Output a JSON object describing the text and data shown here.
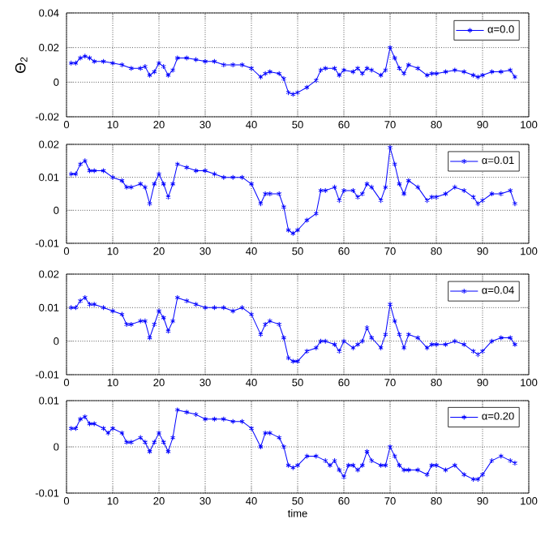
{
  "chart_data": [
    {
      "type": "line",
      "ylabel": "Θ$_{2}$",
      "xlim": [
        0,
        100
      ],
      "xticks": [
        0,
        10,
        20,
        30,
        40,
        50,
        60,
        70,
        80,
        90,
        100
      ],
      "ylim": [
        -0.02,
        0.04
      ],
      "yticks": [
        -0.02,
        0,
        0.02,
        0.04
      ],
      "grid": true,
      "legend": "top right",
      "marker": "cross",
      "line_style": "solid",
      "series": [
        {
          "name": "α=0.0",
          "color": "#0000ff",
          "x": [
            1,
            2,
            3,
            4,
            5,
            6,
            8,
            10,
            12,
            14,
            16,
            17,
            18,
            19,
            20,
            21,
            22,
            23,
            24,
            26,
            28,
            30,
            32,
            34,
            36,
            38,
            40,
            42,
            43,
            44,
            46,
            47,
            48,
            49,
            50,
            52,
            54,
            55,
            56,
            58,
            59,
            60,
            62,
            63,
            64,
            65,
            66,
            68,
            69,
            70,
            71,
            72,
            73,
            74,
            76,
            78,
            79,
            80,
            82,
            84,
            86,
            88,
            89,
            90,
            92,
            94,
            96,
            97
          ],
          "values": [
            0.011,
            0.011,
            0.014,
            0.015,
            0.014,
            0.012,
            0.012,
            0.011,
            0.01,
            0.008,
            0.008,
            0.009,
            0.004,
            0.006,
            0.011,
            0.009,
            0.004,
            0.007,
            0.014,
            0.014,
            0.013,
            0.012,
            0.012,
            0.01,
            0.01,
            0.01,
            0.008,
            0.003,
            0.005,
            0.006,
            0.005,
            0.002,
            -0.006,
            -0.007,
            -0.006,
            -0.003,
            0.001,
            0.007,
            0.008,
            0.008,
            0.004,
            0.007,
            0.006,
            0.008,
            0.005,
            0.008,
            0.007,
            0.004,
            0.007,
            0.02,
            0.014,
            0.008,
            0.005,
            0.01,
            0.008,
            0.004,
            0.005,
            0.005,
            0.006,
            0.007,
            0.006,
            0.004,
            0.003,
            0.004,
            0.006,
            0.006,
            0.007,
            0.003
          ]
        }
      ]
    },
    {
      "type": "line",
      "xlim": [
        0,
        100
      ],
      "xticks": [
        0,
        10,
        20,
        30,
        40,
        50,
        60,
        70,
        80,
        90,
        100
      ],
      "ylim": [
        -0.01,
        0.02
      ],
      "yticks": [
        -0.01,
        0,
        0.01,
        0.02
      ],
      "grid": true,
      "legend": "top right",
      "marker": "cross",
      "line_style": "solid",
      "series": [
        {
          "name": "α=0.01",
          "color": "#0000ff",
          "x": [
            1,
            2,
            3,
            4,
            5,
            6,
            8,
            10,
            12,
            13,
            14,
            16,
            17,
            18,
            19,
            20,
            21,
            22,
            23,
            24,
            26,
            28,
            30,
            32,
            34,
            36,
            38,
            40,
            42,
            43,
            44,
            46,
            47,
            48,
            49,
            50,
            52,
            54,
            55,
            56,
            58,
            59,
            60,
            62,
            63,
            64,
            65,
            66,
            68,
            69,
            70,
            71,
            72,
            73,
            74,
            76,
            78,
            79,
            80,
            82,
            84,
            86,
            88,
            89,
            90,
            92,
            94,
            96,
            97
          ],
          "values": [
            0.011,
            0.011,
            0.014,
            0.015,
            0.012,
            0.012,
            0.012,
            0.01,
            0.009,
            0.007,
            0.007,
            0.008,
            0.007,
            0.002,
            0.008,
            0.011,
            0.008,
            0.004,
            0.008,
            0.014,
            0.013,
            0.012,
            0.012,
            0.011,
            0.01,
            0.01,
            0.01,
            0.008,
            0.002,
            0.005,
            0.005,
            0.005,
            0.001,
            -0.006,
            -0.007,
            -0.006,
            -0.003,
            -0.001,
            0.006,
            0.006,
            0.007,
            0.003,
            0.006,
            0.006,
            0.004,
            0.005,
            0.008,
            0.007,
            0.003,
            0.007,
            0.019,
            0.014,
            0.008,
            0.005,
            0.009,
            0.007,
            0.003,
            0.004,
            0.004,
            0.005,
            0.007,
            0.006,
            0.004,
            0.002,
            0.003,
            0.005,
            0.005,
            0.006,
            0.002
          ]
        }
      ]
    },
    {
      "type": "line",
      "xlim": [
        0,
        100
      ],
      "xticks": [
        0,
        10,
        20,
        30,
        40,
        50,
        60,
        70,
        80,
        90,
        100
      ],
      "ylim": [
        -0.01,
        0.02
      ],
      "yticks": [
        -0.01,
        0,
        0.01,
        0.02
      ],
      "grid": true,
      "legend": "top right",
      "marker": "cross",
      "line_style": "solid",
      "series": [
        {
          "name": "α=0.04",
          "color": "#0000ff",
          "x": [
            1,
            2,
            3,
            4,
            5,
            6,
            8,
            10,
            12,
            13,
            14,
            16,
            17,
            18,
            19,
            20,
            21,
            22,
            23,
            24,
            26,
            28,
            30,
            32,
            34,
            36,
            38,
            40,
            42,
            43,
            44,
            46,
            47,
            48,
            49,
            50,
            52,
            54,
            55,
            56,
            58,
            59,
            60,
            62,
            63,
            64,
            65,
            66,
            68,
            69,
            70,
            71,
            72,
            73,
            74,
            76,
            78,
            79,
            80,
            82,
            84,
            86,
            88,
            89,
            90,
            92,
            94,
            96,
            97
          ],
          "values": [
            0.01,
            0.01,
            0.012,
            0.013,
            0.011,
            0.011,
            0.01,
            0.009,
            0.008,
            0.005,
            0.005,
            0.006,
            0.006,
            0.001,
            0.005,
            0.009,
            0.007,
            0.003,
            0.006,
            0.013,
            0.012,
            0.011,
            0.01,
            0.01,
            0.01,
            0.009,
            0.01,
            0.008,
            0.002,
            0.005,
            0.006,
            0.005,
            0.001,
            -0.005,
            -0.006,
            -0.006,
            -0.003,
            -0.002,
            0.0,
            0.0,
            -0.001,
            -0.003,
            0.0,
            -0.002,
            -0.001,
            0.0,
            0.004,
            0.001,
            -0.002,
            0.002,
            0.011,
            0.006,
            0.002,
            -0.002,
            0.002,
            0.001,
            -0.002,
            -0.001,
            -0.001,
            -0.001,
            0.0,
            -0.001,
            -0.003,
            -0.004,
            -0.003,
            0.0,
            0.001,
            0.001,
            -0.001
          ]
        }
      ]
    },
    {
      "type": "line",
      "xlabel": "time",
      "xlim": [
        0,
        100
      ],
      "xticks": [
        0,
        10,
        20,
        30,
        40,
        50,
        60,
        70,
        80,
        90,
        100
      ],
      "ylim": [
        -0.01,
        0.01
      ],
      "yticks": [
        -0.01,
        0,
        0.01
      ],
      "grid": true,
      "legend": "top right",
      "marker": "cross",
      "line_style": "solid",
      "series": [
        {
          "name": "α=0.20",
          "color": "#0000ff",
          "x": [
            1,
            2,
            3,
            4,
            5,
            6,
            8,
            9,
            10,
            12,
            13,
            14,
            16,
            17,
            18,
            19,
            20,
            21,
            22,
            23,
            24,
            26,
            28,
            30,
            32,
            34,
            36,
            38,
            40,
            42,
            43,
            44,
            46,
            47,
            48,
            49,
            50,
            52,
            54,
            56,
            57,
            58,
            59,
            60,
            61,
            62,
            63,
            64,
            65,
            66,
            68,
            69,
            70,
            71,
            72,
            73,
            74,
            76,
            78,
            79,
            80,
            82,
            84,
            86,
            88,
            89,
            90,
            92,
            94,
            96,
            97
          ],
          "values": [
            0.004,
            0.004,
            0.006,
            0.0065,
            0.005,
            0.005,
            0.004,
            0.003,
            0.004,
            0.003,
            0.001,
            0.001,
            0.002,
            0.001,
            -0.001,
            0.001,
            0.003,
            0.001,
            -0.001,
            0.002,
            0.008,
            0.0075,
            0.007,
            0.006,
            0.006,
            0.006,
            0.0055,
            0.0055,
            0.004,
            0.0,
            0.003,
            0.003,
            0.002,
            0.0,
            -0.004,
            -0.0045,
            -0.004,
            -0.002,
            -0.002,
            -0.003,
            -0.004,
            -0.003,
            -0.005,
            -0.0065,
            -0.004,
            -0.004,
            -0.005,
            -0.004,
            -0.001,
            -0.003,
            -0.004,
            -0.004,
            0.0,
            -0.002,
            -0.004,
            -0.005,
            -0.005,
            -0.005,
            -0.006,
            -0.004,
            -0.004,
            -0.005,
            -0.004,
            -0.006,
            -0.007,
            -0.007,
            -0.006,
            -0.003,
            -0.002,
            -0.003,
            -0.0035
          ]
        }
      ]
    }
  ]
}
